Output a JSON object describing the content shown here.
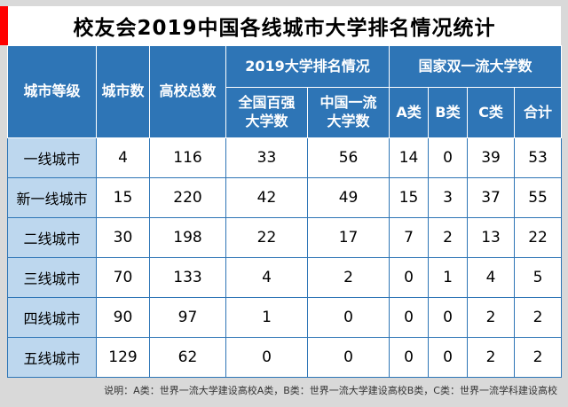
{
  "title": "校友会2019中国各线城市大学排名情况统计",
  "colors": {
    "accent_red": "#ff0000",
    "header_blue": "#2e75b6",
    "label_light_blue": "#bdd7ee",
    "page_gray": "#d9d9d9"
  },
  "header": {
    "city_tier": "城市等级",
    "city_count": "城市数",
    "univ_total": "高校总数",
    "group_ranking": "2019大学排名情况",
    "col_top100": "全国百强大学数",
    "col_first_class": "中国一流大学数",
    "group_double": "国家双一流大学数",
    "col_a": "A类",
    "col_b": "B类",
    "col_c": "C类",
    "col_total": "合计"
  },
  "rows": [
    {
      "label": "一线城市",
      "values": [
        "4",
        "116",
        "33",
        "56",
        "14",
        "0",
        "39",
        "53"
      ]
    },
    {
      "label": "新一线城市",
      "values": [
        "15",
        "220",
        "42",
        "49",
        "15",
        "3",
        "37",
        "55"
      ]
    },
    {
      "label": "二线城市",
      "values": [
        "30",
        "198",
        "22",
        "17",
        "7",
        "2",
        "13",
        "22"
      ]
    },
    {
      "label": "三线城市",
      "values": [
        "70",
        "133",
        "4",
        "2",
        "0",
        "1",
        "4",
        "5"
      ]
    },
    {
      "label": "四线城市",
      "values": [
        "90",
        "97",
        "1",
        "0",
        "0",
        "0",
        "2",
        "2"
      ]
    },
    {
      "label": "五线城市",
      "values": [
        "129",
        "62",
        "0",
        "0",
        "0",
        "0",
        "2",
        "2"
      ]
    }
  ],
  "footer": "说明：A类：世界一流大学建设高校A类，B类：世界一流大学建设高校B类，C类：世界一流学科建设高校",
  "chart_data": {
    "type": "table",
    "title": "校友会2019中国各线城市大学排名情况统计",
    "columns": [
      "城市等级",
      "城市数",
      "高校总数",
      "全国百强大学数",
      "中国一流大学数",
      "A类",
      "B类",
      "C类",
      "合计"
    ],
    "column_groups": [
      {
        "label": "2019大学排名情况",
        "columns": [
          "全国百强大学数",
          "中国一流大学数"
        ]
      },
      {
        "label": "国家双一流大学数",
        "columns": [
          "A类",
          "B类",
          "C类",
          "合计"
        ]
      }
    ],
    "rows": [
      {
        "城市等级": "一线城市",
        "城市数": 4,
        "高校总数": 116,
        "全国百强大学数": 33,
        "中国一流大学数": 56,
        "A类": 14,
        "B类": 0,
        "C类": 39,
        "合计": 53
      },
      {
        "城市等级": "新一线城市",
        "城市数": 15,
        "高校总数": 220,
        "全国百强大学数": 42,
        "中国一流大学数": 49,
        "A类": 15,
        "B类": 3,
        "C类": 37,
        "合计": 55
      },
      {
        "城市等级": "二线城市",
        "城市数": 30,
        "高校总数": 198,
        "全国百强大学数": 22,
        "中国一流大学数": 17,
        "A类": 7,
        "B类": 2,
        "C类": 13,
        "合计": 22
      },
      {
        "城市等级": "三线城市",
        "城市数": 70,
        "高校总数": 133,
        "全国百强大学数": 4,
        "中国一流大学数": 2,
        "A类": 0,
        "B类": 1,
        "C类": 4,
        "合计": 5
      },
      {
        "城市等级": "四线城市",
        "城市数": 90,
        "高校总数": 97,
        "全国百强大学数": 1,
        "中国一流大学数": 0,
        "A类": 0,
        "B类": 0,
        "C类": 2,
        "合计": 2
      },
      {
        "城市等级": "五线城市",
        "城市数": 129,
        "高校总数": 62,
        "全国百强大学数": 0,
        "中国一流大学数": 0,
        "A类": 0,
        "B类": 0,
        "C类": 2,
        "合计": 2
      }
    ],
    "footnote": "说明：A类：世界一流大学建设高校A类，B类：世界一流大学建设高校B类，C类：世界一流学科建设高校"
  }
}
